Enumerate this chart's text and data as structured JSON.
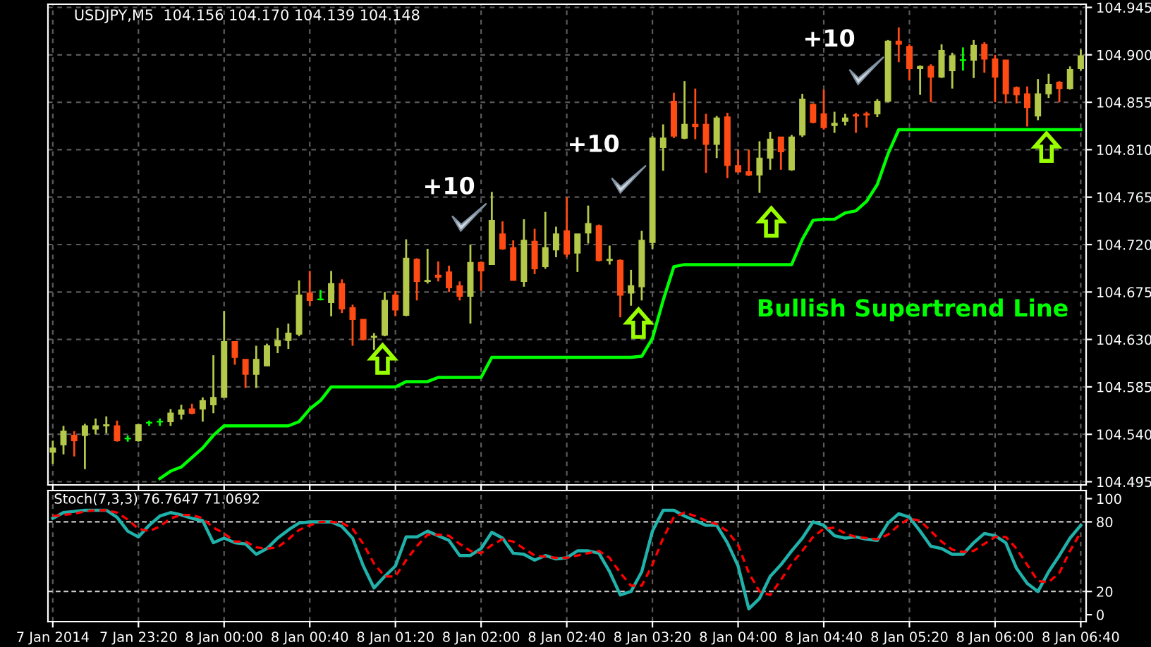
{
  "chart_data": [
    {
      "type": "candlestick",
      "title": "USDJPY,M5  104.156 104.170 104.139 104.148",
      "series": [
        {
          "type": "candlestick",
          "ohlc": [
            [
              104.523,
              104.534,
              104.512,
              104.527
            ],
            [
              104.53,
              104.548,
              104.521,
              104.543
            ],
            [
              104.539,
              104.543,
              104.519,
              104.534
            ],
            [
              104.539,
              104.55,
              104.507,
              104.548
            ],
            [
              104.545,
              104.555,
              104.54,
              104.548
            ],
            [
              104.548,
              104.557,
              104.541,
              104.549
            ],
            [
              104.548,
              104.553,
              104.533,
              104.534
            ],
            [
              104.536,
              104.539,
              104.533,
              104.536
            ],
            [
              104.534,
              104.55,
              104.533,
              104.549
            ],
            [
              104.551,
              104.553,
              104.548,
              104.551
            ],
            [
              104.552,
              104.555,
              104.548,
              104.552
            ],
            [
              104.552,
              104.564,
              104.548,
              104.56
            ],
            [
              104.559,
              104.568,
              104.554,
              104.563
            ],
            [
              104.564,
              104.569,
              104.559,
              104.56
            ],
            [
              104.564,
              104.575,
              104.552,
              104.572
            ],
            [
              104.568,
              104.615,
              104.56,
              104.575
            ],
            [
              104.575,
              104.657,
              104.575,
              104.628
            ],
            [
              104.628,
              104.628,
              104.606,
              104.613
            ],
            [
              104.611,
              104.611,
              104.584,
              104.597
            ],
            [
              104.597,
              104.624,
              104.584,
              104.611
            ],
            [
              104.605,
              104.626,
              104.605,
              104.624
            ],
            [
              104.624,
              104.641,
              104.617,
              104.629
            ],
            [
              104.629,
              104.645,
              104.621,
              104.636
            ],
            [
              104.635,
              104.686,
              104.633,
              104.672
            ],
            [
              104.674,
              104.695,
              104.662,
              104.667
            ],
            [
              104.668,
              104.677,
              104.667,
              104.668
            ],
            [
              104.665,
              104.695,
              104.652,
              104.683
            ],
            [
              104.683,
              104.687,
              104.655,
              104.659
            ],
            [
              104.66,
              104.663,
              104.624,
              104.649
            ],
            [
              104.649,
              104.649,
              104.629,
              104.63
            ],
            [
              104.632,
              104.636,
              104.62,
              104.633
            ],
            [
              104.634,
              104.675,
              104.633,
              104.667
            ],
            [
              104.672,
              104.676,
              104.652,
              104.658
            ],
            [
              104.653,
              104.725,
              104.652,
              104.707
            ],
            [
              104.706,
              104.707,
              104.667,
              104.685
            ],
            [
              104.685,
              104.716,
              104.683,
              104.686
            ],
            [
              104.691,
              104.704,
              104.685,
              104.689
            ],
            [
              104.694,
              104.7,
              104.675,
              104.679
            ],
            [
              104.681,
              104.685,
              104.667,
              104.671
            ],
            [
              104.671,
              104.72,
              104.645,
              104.703
            ],
            [
              104.703,
              104.704,
              104.676,
              104.695
            ],
            [
              104.701,
              104.77,
              104.701,
              104.743
            ],
            [
              104.73,
              104.742,
              104.715,
              104.716
            ],
            [
              104.717,
              104.724,
              104.686,
              104.686
            ],
            [
              104.685,
              104.744,
              104.68,
              104.724
            ],
            [
              104.723,
              104.735,
              104.692,
              104.697
            ],
            [
              104.699,
              104.751,
              104.697,
              104.717
            ],
            [
              104.715,
              104.737,
              104.708,
              104.73
            ],
            [
              104.733,
              104.765,
              104.708,
              104.711
            ],
            [
              104.712,
              104.73,
              104.694,
              104.73
            ],
            [
              104.731,
              104.757,
              104.721,
              104.74
            ],
            [
              104.738,
              104.739,
              104.704,
              104.705
            ],
            [
              104.705,
              104.719,
              104.701,
              104.706
            ],
            [
              104.705,
              104.706,
              104.651,
              104.672
            ],
            [
              104.674,
              104.696,
              104.662,
              104.681
            ],
            [
              104.68,
              104.733,
              104.667,
              104.724
            ],
            [
              104.722,
              104.823,
              104.716,
              104.821
            ],
            [
              104.812,
              104.834,
              104.79,
              104.821
            ],
            [
              104.856,
              104.864,
              104.821,
              104.823
            ],
            [
              104.821,
              104.875,
              104.82,
              104.834
            ],
            [
              104.834,
              104.868,
              104.82,
              104.832
            ],
            [
              104.834,
              104.844,
              104.788,
              104.815
            ],
            [
              104.815,
              104.842,
              104.802,
              104.84
            ],
            [
              104.841,
              104.845,
              104.783,
              104.795
            ],
            [
              104.795,
              104.81,
              104.788,
              104.789
            ],
            [
              104.789,
              104.81,
              104.785,
              104.786
            ],
            [
              104.786,
              104.818,
              104.769,
              104.802
            ],
            [
              104.802,
              104.827,
              104.791,
              104.82
            ],
            [
              104.822,
              104.822,
              104.791,
              104.808
            ],
            [
              104.791,
              104.824,
              104.79,
              104.822
            ],
            [
              104.824,
              104.863,
              104.822,
              104.858
            ],
            [
              104.853,
              104.854,
              104.835,
              104.836
            ],
            [
              104.844,
              104.867,
              104.829,
              104.831
            ],
            [
              104.833,
              104.846,
              104.826,
              104.835
            ],
            [
              104.837,
              104.844,
              104.833,
              104.84
            ],
            [
              104.843,
              104.845,
              104.826,
              104.842
            ],
            [
              104.844,
              104.846,
              104.831,
              104.843
            ],
            [
              104.844,
              104.858,
              104.841,
              104.856
            ],
            [
              104.856,
              104.914,
              104.855,
              104.913
            ],
            [
              104.913,
              104.926,
              104.893,
              104.91
            ],
            [
              104.908,
              104.91,
              104.876,
              104.887
            ],
            [
              104.887,
              104.89,
              104.862,
              104.889
            ],
            [
              104.889,
              104.891,
              104.855,
              104.879
            ],
            [
              104.879,
              104.91,
              104.878,
              104.904
            ],
            [
              104.885,
              104.902,
              104.868,
              104.899
            ],
            [
              104.895,
              104.907,
              104.885,
              104.895
            ],
            [
              104.895,
              104.914,
              104.878,
              104.909
            ],
            [
              104.91,
              104.912,
              104.883,
              104.896
            ],
            [
              104.896,
              104.9,
              104.855,
              104.879
            ],
            [
              104.895,
              104.895,
              104.854,
              104.863
            ],
            [
              104.869,
              104.87,
              104.854,
              104.862
            ],
            [
              104.863,
              104.87,
              104.832,
              104.85
            ],
            [
              104.842,
              104.877,
              104.838,
              104.863
            ],
            [
              104.863,
              104.882,
              104.859,
              104.872
            ],
            [
              104.874,
              104.875,
              104.855,
              104.868
            ],
            [
              104.868,
              104.889,
              104.867,
              104.886
            ],
            [
              104.887,
              104.905,
              104.885,
              104.899
            ]
          ],
          "colors": [
            "#b4c84a",
            "#b4c84a",
            "#ff4b14",
            "#b4c84a",
            "#b4c84a",
            "#b4c84a",
            "#ff4b14",
            "#00ff00",
            "#b4c84a",
            "#00ff00",
            "#00ff00",
            "#b4c84a",
            "#b4c84a",
            "#ff4b14",
            "#b4c84a",
            "#b4c84a",
            "#b4c84a",
            "#ff4b14",
            "#ff4b14",
            "#b4c84a",
            "#b4c84a",
            "#b4c84a",
            "#b4c84a",
            "#b4c84a",
            "#ff4b14",
            "#00ff00",
            "#b4c84a",
            "#ff4b14",
            "#ff4b14",
            "#ff4b14",
            "#b4c84a",
            "#b4c84a",
            "#ff4b14",
            "#b4c84a",
            "#ff4b14",
            "#b4c84a",
            "#ff4b14",
            "#ff4b14",
            "#ff4b14",
            "#b4c84a",
            "#ff4b14",
            "#b4c84a",
            "#ff4b14",
            "#ff4b14",
            "#b4c84a",
            "#ff4b14",
            "#b4c84a",
            "#b4c84a",
            "#ff4b14",
            "#b4c84a",
            "#b4c84a",
            "#ff4b14",
            "#b4c84a",
            "#ff4b14",
            "#b4c84a",
            "#b4c84a",
            "#b4c84a",
            "#b4c84a",
            "#ff4b14",
            "#b4c84a",
            "#ff4b14",
            "#ff4b14",
            "#b4c84a",
            "#ff4b14",
            "#ff4b14",
            "#ff4b14",
            "#b4c84a",
            "#b4c84a",
            "#ff4b14",
            "#b4c84a",
            "#b4c84a",
            "#ff4b14",
            "#ff4b14",
            "#b4c84a",
            "#b4c84a",
            "#ff4b14",
            "#ff4b14",
            "#b4c84a",
            "#b4c84a",
            "#ff4b14",
            "#ff4b14",
            "#b4c84a",
            "#ff4b14",
            "#b4c84a",
            "#b4c84a",
            "#00ff00",
            "#b4c84a",
            "#ff4b14",
            "#ff4b14",
            "#ff4b14",
            "#ff4b14",
            "#ff4b14",
            "#b4c84a",
            "#b4c84a",
            "#ff4b14",
            "#b4c84a",
            "#b4c84a"
          ]
        },
        {
          "type": "line",
          "color": "#00ff00",
          "values": [
            null,
            null,
            null,
            null,
            null,
            null,
            null,
            null,
            null,
            null,
            104.498,
            104.505,
            104.509,
            104.518,
            104.527,
            104.539,
            104.548,
            104.548,
            104.548,
            104.548,
            104.548,
            104.548,
            104.548,
            104.552,
            104.564,
            104.572,
            104.585,
            104.585,
            104.585,
            104.585,
            104.585,
            104.585,
            104.585,
            104.59,
            104.59,
            104.59,
            104.594,
            104.594,
            104.594,
            104.594,
            104.594,
            104.613,
            104.613,
            104.613,
            104.613,
            104.613,
            104.613,
            104.613,
            104.613,
            104.613,
            104.613,
            104.613,
            104.613,
            104.613,
            104.613,
            104.614,
            104.631,
            104.667,
            104.699,
            104.701,
            104.701,
            104.701,
            104.701,
            104.701,
            104.701,
            104.701,
            104.701,
            104.701,
            104.701,
            104.701,
            104.725,
            104.743,
            104.744,
            104.744,
            104.75,
            104.752,
            104.761,
            104.777,
            104.806,
            104.829,
            104.829,
            104.829,
            104.829,
            104.829,
            104.829,
            104.829,
            104.829,
            104.829,
            104.829,
            104.829,
            104.829,
            104.829,
            104.829,
            104.829,
            104.829,
            104.829,
            104.829
          ]
        }
      ],
      "ylim": [
        104.492,
        104.948
      ],
      "yticks": [
        {
          "value": 104.945,
          "label": "104.945"
        },
        {
          "value": 104.9,
          "label": "104.900"
        },
        {
          "value": 104.855,
          "label": "104.855"
        },
        {
          "value": 104.81,
          "label": "104.810"
        },
        {
          "value": 104.765,
          "label": "104.765"
        },
        {
          "value": 104.72,
          "label": "104.720"
        },
        {
          "value": 104.675,
          "label": "104.675"
        },
        {
          "value": 104.63,
          "label": "104.630"
        },
        {
          "value": 104.585,
          "label": "104.585"
        },
        {
          "value": 104.54,
          "label": "104.540"
        },
        {
          "value": 104.495,
          "label": "104.495"
        }
      ],
      "grid": true,
      "tick_labels": "y",
      "annotations": [
        "+10",
        "+10",
        "+10",
        "Bullish Supertrend Line"
      ]
    },
    {
      "type": "line",
      "categories": [
        "7 Jan 2014",
        null,
        null,
        null,
        null,
        null,
        null,
        null,
        "7 Jan 23:20",
        null,
        null,
        null,
        null,
        null,
        null,
        null,
        "8 Jan 00:00",
        null,
        null,
        null,
        null,
        null,
        null,
        null,
        "8 Jan 00:40",
        null,
        null,
        null,
        null,
        null,
        null,
        null,
        "8 Jan 01:20",
        null,
        null,
        null,
        null,
        null,
        null,
        null,
        "8 Jan 02:00",
        null,
        null,
        null,
        null,
        null,
        null,
        null,
        "8 Jan 02:40",
        null,
        null,
        null,
        null,
        null,
        null,
        null,
        "8 Jan 03:20",
        null,
        null,
        null,
        null,
        null,
        null,
        null,
        "8 Jan 04:00",
        null,
        null,
        null,
        null,
        null,
        null,
        null,
        "8 Jan 04:40",
        null,
        null,
        null,
        null,
        null,
        null,
        null,
        "8 Jan 05:20",
        null,
        null,
        null,
        null,
        null,
        null,
        null,
        "8 Jan 06:00",
        null,
        null,
        null,
        null,
        null,
        null,
        null,
        "8 Jan 06:40"
      ],
      "series": [
        {
          "color": "#20b2aa",
          "line_style": "solid",
          "values": [
            83,
            88,
            89,
            90,
            90,
            90,
            84,
            72,
            67,
            77,
            85,
            88,
            86,
            83,
            81,
            62,
            66,
            62,
            61,
            52,
            57,
            66,
            73,
            79,
            80,
            80,
            80,
            76,
            66,
            42,
            23,
            33,
            42,
            67,
            67,
            72,
            68,
            64,
            51,
            51,
            57,
            71,
            66,
            53,
            52,
            47,
            51,
            48,
            49,
            55,
            55,
            53,
            37,
            17,
            20,
            37,
            72,
            90,
            90,
            85,
            81,
            77,
            77,
            62,
            42,
            5,
            14,
            33,
            43,
            55,
            66,
            80,
            77,
            68,
            66,
            67,
            65,
            64,
            79,
            87,
            84,
            72,
            59,
            57,
            52,
            52,
            62,
            70,
            68,
            62,
            40,
            27,
            20,
            37,
            51,
            66,
            77
          ]
        },
        {
          "color": "#ff0000",
          "line_style": "dashed",
          "values": [
            85,
            86,
            87,
            89,
            90,
            90,
            88,
            82,
            74,
            72,
            76,
            83,
            86,
            86,
            83,
            75,
            70,
            63,
            63,
            58,
            57,
            58,
            65,
            73,
            77,
            80,
            80,
            79,
            74,
            61,
            44,
            33,
            33,
            47,
            59,
            69,
            69,
            68,
            61,
            55,
            53,
            60,
            65,
            63,
            57,
            51,
            50,
            49,
            49,
            51,
            53,
            55,
            49,
            36,
            25,
            25,
            43,
            66,
            84,
            88,
            85,
            81,
            78,
            72,
            60,
            36,
            20,
            17,
            30,
            44,
            55,
            67,
            74,
            75,
            70,
            67,
            66,
            65,
            69,
            77,
            83,
            81,
            72,
            63,
            56,
            54,
            55,
            61,
            67,
            67,
            57,
            43,
            29,
            28,
            36,
            55,
            71
          ]
        }
      ],
      "ylim": [
        -6,
        107
      ],
      "yticks": [
        0,
        20,
        80,
        100
      ],
      "grid": "x",
      "ref_lines": [
        {
          "axis": "y",
          "value": 20,
          "color": "#c8c8c8",
          "line_style": "dashed"
        },
        {
          "axis": "y",
          "value": 80,
          "color": "#c8c8c8",
          "line_style": "dashed"
        }
      ],
      "annotations": [
        "Stoch(7,3,3) 76.7647 71.0692"
      ]
    }
  ]
}
